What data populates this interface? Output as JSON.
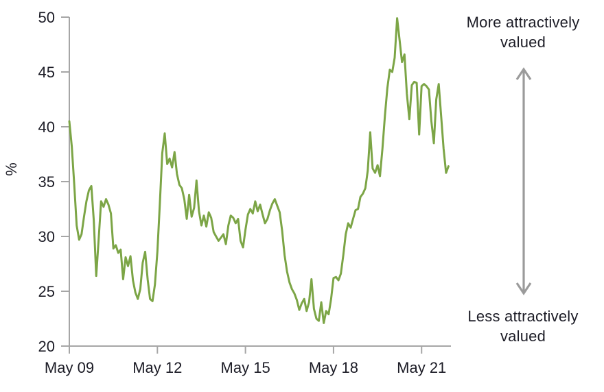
{
  "chart_data": {
    "type": "line",
    "title": "",
    "ylabel": "%",
    "ylim": [
      20,
      50
    ],
    "y_ticks": [
      20,
      25,
      30,
      35,
      40,
      45,
      50
    ],
    "x_tick_labels": [
      "May 09",
      "May 12",
      "May 15",
      "May 18",
      "May 21"
    ],
    "x_tick_month_indices": [
      0,
      36,
      72,
      108,
      144
    ],
    "x_start": "May 2009",
    "x_frequency": "monthly",
    "grid": false,
    "legend": "none",
    "series": [
      {
        "color": "#7CA546",
        "values": [
          40.5,
          38.2,
          34.8,
          31.0,
          29.7,
          30.2,
          31.8,
          33.2,
          34.2,
          34.6,
          31.5,
          26.4,
          29.8,
          33.2,
          32.7,
          33.4,
          32.9,
          32.1,
          28.9,
          29.2,
          28.5,
          28.8,
          26.1,
          28.1,
          27.3,
          28.2,
          26.0,
          24.9,
          24.3,
          25.2,
          27.6,
          28.6,
          26.1,
          24.3,
          24.1,
          25.6,
          28.6,
          33.0,
          37.6,
          39.4,
          36.6,
          37.1,
          36.3,
          37.7,
          35.7,
          34.7,
          34.4,
          33.4,
          31.6,
          33.8,
          31.8,
          32.6,
          35.1,
          32.3,
          31.0,
          31.9,
          30.9,
          32.2,
          31.7,
          30.4,
          30.0,
          29.6,
          29.9,
          30.2,
          29.3,
          31.0,
          31.9,
          31.7,
          31.2,
          31.6,
          29.6,
          29.0,
          30.6,
          32.0,
          32.5,
          32.1,
          33.2,
          32.3,
          32.9,
          32.0,
          31.2,
          31.6,
          32.4,
          33.0,
          33.4,
          32.8,
          32.2,
          30.5,
          28.3,
          26.8,
          25.8,
          25.2,
          24.8,
          24.2,
          23.3,
          23.9,
          24.3,
          23.2,
          24.0,
          26.1,
          23.4,
          22.5,
          22.3,
          24.0,
          22.1,
          23.2,
          22.9,
          24.3,
          26.2,
          26.3,
          26.0,
          26.6,
          28.3,
          30.2,
          31.2,
          30.8,
          31.6,
          32.4,
          32.5,
          33.6,
          33.9,
          34.4,
          36.0,
          39.5,
          36.2,
          35.8,
          36.5,
          35.5,
          38.0,
          41.0,
          43.5,
          45.2,
          45.0,
          46.3,
          49.9,
          47.9,
          45.9,
          46.6,
          43.0,
          40.7,
          43.8,
          44.1,
          44.0,
          39.3,
          43.7,
          43.9,
          43.7,
          43.4,
          40.5,
          38.5,
          42.5,
          43.9,
          41.0,
          38.0,
          35.8,
          36.4
        ]
      }
    ]
  },
  "annotations": {
    "more": "More attractively\nvalued",
    "less": "Less attractively\nvalued",
    "arrow_color": "#9B9B9B"
  },
  "colors": {
    "line": "#7CA546",
    "axis": "#A6A6A6",
    "text": "#1C1C26",
    "background": "#FFFFFF"
  }
}
